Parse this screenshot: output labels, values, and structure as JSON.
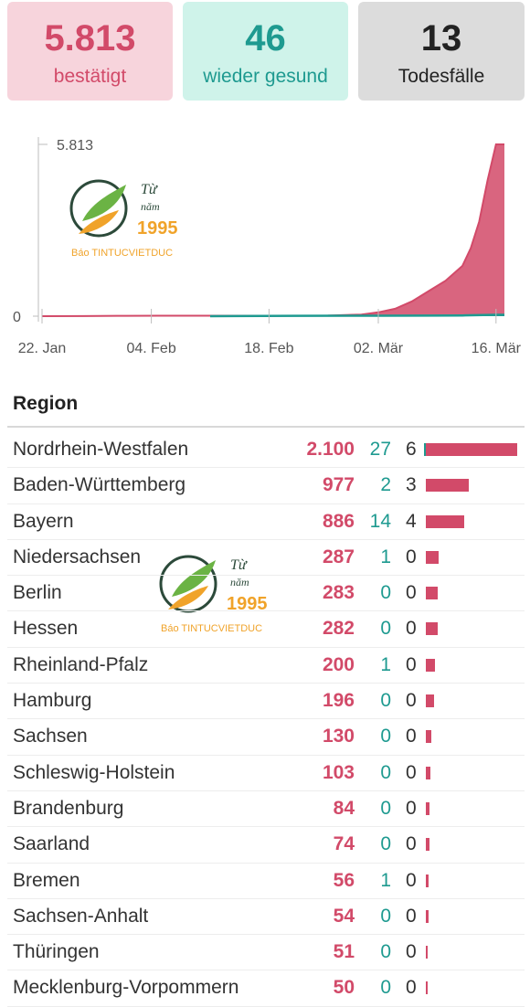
{
  "stats": {
    "confirmed": {
      "value": "5.813",
      "label": "bestätigt"
    },
    "recovered": {
      "value": "46",
      "label": "wieder gesund"
    },
    "deaths": {
      "value": "13",
      "label": "Todesfälle"
    }
  },
  "colors": {
    "confirmed": "#d24a69",
    "recovered": "#1e9a90",
    "deaths": "#222222"
  },
  "watermark": {
    "line1": "Từ",
    "line2": "năm",
    "year": "1995",
    "brand": "Báo TINTUCVIETDUC"
  },
  "chart_data": [
    {
      "type": "area",
      "y_max_label": "5.813",
      "y_min_label": "0",
      "ylim": [
        0,
        5813
      ],
      "x_ticks": [
        "22. Jan",
        "04. Feb",
        "18. Feb",
        "02. Mär",
        "16. Mär"
      ],
      "x_tick_days": [
        0,
        13,
        27,
        40,
        54
      ],
      "x_range_days": [
        0,
        55
      ],
      "series": [
        {
          "name": "bestätigt",
          "color": "#d24a69",
          "points": [
            [
              0,
              0
            ],
            [
              5,
              4
            ],
            [
              10,
              12
            ],
            [
              14,
              16
            ],
            [
              20,
              16
            ],
            [
              28,
              16
            ],
            [
              34,
              18
            ],
            [
              38,
              57
            ],
            [
              40,
              130
            ],
            [
              42,
              250
            ],
            [
              44,
              500
            ],
            [
              46,
              850
            ],
            [
              48,
              1200
            ],
            [
              50,
              1700
            ],
            [
              51,
              2300
            ],
            [
              52,
              3200
            ],
            [
              53,
              4600
            ],
            [
              54,
              5813
            ],
            [
              55,
              5813
            ]
          ]
        },
        {
          "name": "wieder gesund",
          "color": "#1e9a90",
          "points": [
            [
              20,
              0
            ],
            [
              30,
              12
            ],
            [
              40,
              16
            ],
            [
              46,
              18
            ],
            [
              50,
              25
            ],
            [
              54,
              46
            ],
            [
              55,
              46
            ]
          ]
        }
      ]
    },
    {
      "type": "table",
      "header": "Region",
      "max_confirmed": 2100,
      "rows": [
        {
          "region": "Nordrhein-Westfalen",
          "confirmed_label": "2.100",
          "confirmed": 2100,
          "recovered": "27",
          "deaths": "6"
        },
        {
          "region": "Baden-Württemberg",
          "confirmed_label": "977",
          "confirmed": 977,
          "recovered": "2",
          "deaths": "3"
        },
        {
          "region": "Bayern",
          "confirmed_label": "886",
          "confirmed": 886,
          "recovered": "14",
          "deaths": "4"
        },
        {
          "region": "Niedersachsen",
          "confirmed_label": "287",
          "confirmed": 287,
          "recovered": "1",
          "deaths": "0"
        },
        {
          "region": "Berlin",
          "confirmed_label": "283",
          "confirmed": 283,
          "recovered": "0",
          "deaths": "0"
        },
        {
          "region": "Hessen",
          "confirmed_label": "282",
          "confirmed": 282,
          "recovered": "0",
          "deaths": "0"
        },
        {
          "region": "Rheinland-Pfalz",
          "confirmed_label": "200",
          "confirmed": 200,
          "recovered": "1",
          "deaths": "0"
        },
        {
          "region": "Hamburg",
          "confirmed_label": "196",
          "confirmed": 196,
          "recovered": "0",
          "deaths": "0"
        },
        {
          "region": "Sachsen",
          "confirmed_label": "130",
          "confirmed": 130,
          "recovered": "0",
          "deaths": "0"
        },
        {
          "region": "Schleswig-Holstein",
          "confirmed_label": "103",
          "confirmed": 103,
          "recovered": "0",
          "deaths": "0"
        },
        {
          "region": "Brandenburg",
          "confirmed_label": "84",
          "confirmed": 84,
          "recovered": "0",
          "deaths": "0"
        },
        {
          "region": "Saarland",
          "confirmed_label": "74",
          "confirmed": 74,
          "recovered": "0",
          "deaths": "0"
        },
        {
          "region": "Bremen",
          "confirmed_label": "56",
          "confirmed": 56,
          "recovered": "1",
          "deaths": "0"
        },
        {
          "region": "Sachsen-Anhalt",
          "confirmed_label": "54",
          "confirmed": 54,
          "recovered": "0",
          "deaths": "0"
        },
        {
          "region": "Thüringen",
          "confirmed_label": "51",
          "confirmed": 51,
          "recovered": "0",
          "deaths": "0"
        },
        {
          "region": "Mecklenburg-Vorpommern",
          "confirmed_label": "50",
          "confirmed": 50,
          "recovered": "0",
          "deaths": "0"
        }
      ]
    }
  ]
}
